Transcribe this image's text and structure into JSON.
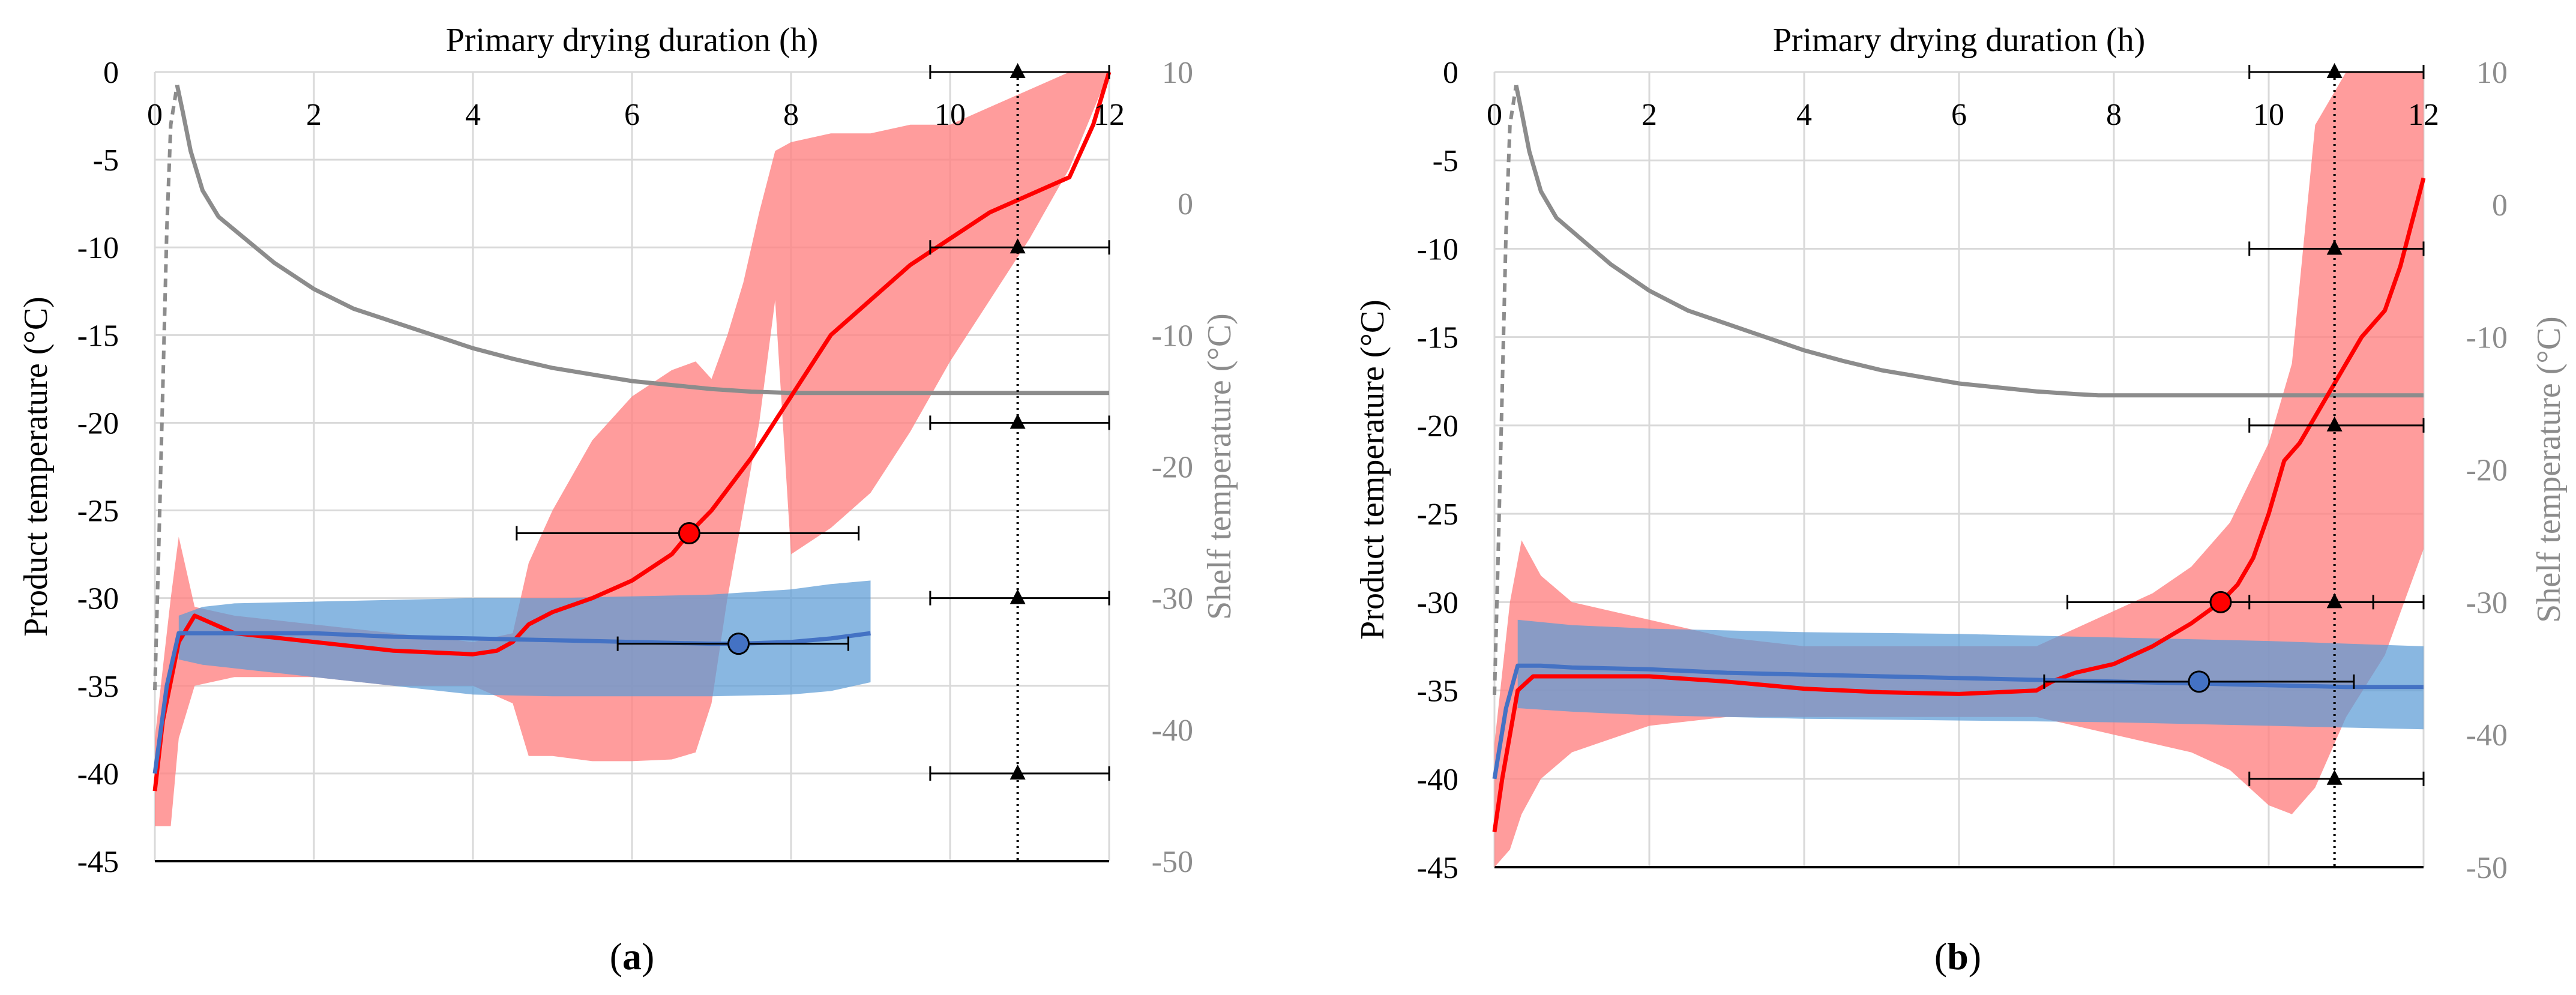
{
  "colors": {
    "red": "#ff0000",
    "red_band": "#ff8080",
    "blue": "#4472c4",
    "blue_band": "#5b9bd5",
    "shelf": "#8c8c8c",
    "grid": "#d9d9d9",
    "axis_text": "#000000",
    "secondary_text": "#8c8c8c"
  },
  "chart_data": [
    {
      "panel_label": "(a)",
      "panel_letter": "a",
      "type": "line",
      "title": "Primary drying duration (h)",
      "xlabel": "Primary drying duration (h)",
      "ylabel": "Product temperature (°C)",
      "y2label": "Shelf temperature (°C)",
      "xlim": [
        0,
        12
      ],
      "ylim": [
        -45,
        0
      ],
      "y2lim": [
        -50,
        10
      ],
      "xticks": [
        "0",
        "2",
        "4",
        "6",
        "8",
        "10",
        "12"
      ],
      "yticks": [
        "0",
        "-5",
        "-10",
        "-15",
        "-20",
        "-25",
        "-30",
        "-35",
        "-40",
        "-45"
      ],
      "y2ticks": [
        "10",
        "0",
        "-10",
        "-20",
        "-30",
        "-40",
        "-50"
      ],
      "series": [
        {
          "name": "Shelf temperature",
          "axis": "y2",
          "style": "solid-gray",
          "dashed_x": [
            0,
            0.05,
            0.1,
            0.15,
            0.2,
            0.28
          ],
          "dashed_y": [
            -37,
            -26,
            -14,
            -2,
            6,
            9
          ],
          "x": [
            0.28,
            0.35,
            0.45,
            0.6,
            0.8,
            1.0,
            1.5,
            2.0,
            2.5,
            3.0,
            3.5,
            4.0,
            4.5,
            5.0,
            5.5,
            6.0,
            6.5,
            7.0,
            7.5,
            8.0,
            9.0,
            10.0,
            11.0,
            12.0
          ],
          "y": [
            9,
            7,
            4,
            1,
            -1,
            -2,
            -4.5,
            -6.5,
            -8,
            -9,
            -10,
            -11,
            -11.8,
            -12.5,
            -13,
            -13.5,
            -13.8,
            -14.1,
            -14.3,
            -14.4,
            -14.4,
            -14.4,
            -14.4,
            -14.4
          ]
        },
        {
          "name": "Product temperature (red)",
          "axis": "y",
          "x": [
            0,
            0.1,
            0.3,
            0.5,
            1.0,
            2.0,
            3.0,
            4.0,
            4.3,
            4.5,
            4.7,
            5.0,
            5.5,
            6.0,
            6.5,
            6.72,
            7.0,
            7.5,
            8.0,
            8.5,
            9.0,
            9.5,
            10.0,
            10.5,
            11.0,
            11.5,
            11.8,
            12.0
          ],
          "y": [
            -41,
            -37,
            -32.5,
            -31,
            -32,
            -32.5,
            -33,
            -33.2,
            -33,
            -32.5,
            -31.5,
            -30.8,
            -30,
            -29,
            -27.5,
            -26.3,
            -25,
            -22,
            -18.5,
            -15,
            -13,
            -11,
            -9.5,
            -8,
            -7,
            -6,
            -3,
            0
          ]
        },
        {
          "name": "Red variability band",
          "axis": "y",
          "type": "band",
          "x": [
            0,
            0.2,
            0.3,
            0.5,
            1.0,
            2.0,
            3.0,
            4.0,
            4.5,
            4.7,
            5.0,
            5.5,
            6.0,
            6.5,
            6.8,
            7.0,
            7.2,
            7.4,
            7.6,
            7.8,
            8.0,
            8.5,
            9.0,
            9.5,
            10.0,
            10.5,
            11.0,
            11.5,
            12.0
          ],
          "upper": [
            -38,
            -30,
            -26.5,
            -30.5,
            -31,
            -31.5,
            -32,
            -32.5,
            -32,
            -28,
            -25,
            -21,
            -18.5,
            -17,
            -16.5,
            -17.5,
            -15,
            -12,
            -8,
            -4.5,
            -4,
            -3.5,
            -3.5,
            -3,
            -3,
            -2,
            -1,
            0,
            0
          ],
          "lower": [
            -43,
            -43,
            -38,
            -35,
            -34.5,
            -34.5,
            -35,
            -35,
            -36,
            -39,
            -39,
            -39.3,
            -39.3,
            -39.2,
            -38.8,
            -36,
            -30,
            -25,
            -20,
            -13,
            -27.5,
            -26,
            -24,
            -20.5,
            -16.5,
            -13,
            -9.5,
            -5.5,
            0
          ]
        },
        {
          "name": "Product temperature (blue)",
          "axis": "y",
          "x": [
            0,
            0.15,
            0.3,
            0.5,
            1.0,
            2.0,
            3.0,
            4.0,
            5.0,
            6.0,
            7.0,
            7.34,
            8.0,
            8.5,
            9.0
          ],
          "y": [
            -40,
            -35,
            -32,
            -32,
            -32,
            -32,
            -32.2,
            -32.3,
            -32.4,
            -32.5,
            -32.6,
            -32.6,
            -32.5,
            -32.3,
            -32
          ]
        },
        {
          "name": "Blue variability band",
          "axis": "y",
          "type": "band",
          "x": [
            0.3,
            0.6,
            1.0,
            2.0,
            3.0,
            4.0,
            5.0,
            6.0,
            7.0,
            8.0,
            8.5,
            9.0
          ],
          "upper": [
            -31,
            -30.5,
            -30.3,
            -30.2,
            -30.1,
            -30,
            -30,
            -29.9,
            -29.8,
            -29.5,
            -29.2,
            -29
          ],
          "lower": [
            -33.5,
            -33.8,
            -34,
            -34.5,
            -35,
            -35.5,
            -35.6,
            -35.6,
            -35.6,
            -35.5,
            -35.3,
            -34.8
          ]
        }
      ],
      "markers": [
        {
          "name": "red-endpoint",
          "x": 6.72,
          "y": -26.3,
          "xerr": [
            4.55,
            8.85
          ],
          "color": "red"
        },
        {
          "name": "blue-endpoint",
          "x": 7.34,
          "y": -32.6,
          "xerr": [
            5.82,
            8.72
          ],
          "color": "blue"
        }
      ],
      "reference_line_x": 10.85,
      "triangle_markers": [
        {
          "x": 10.85,
          "y": 0,
          "xerr": [
            9.75,
            12
          ]
        },
        {
          "x": 10.85,
          "y": -10,
          "xerr": [
            9.75,
            12
          ]
        },
        {
          "x": 10.85,
          "y": -20,
          "xerr": [
            9.75,
            12
          ]
        },
        {
          "x": 10.85,
          "y": -30,
          "xerr": [
            9.75,
            12
          ]
        },
        {
          "x": 10.85,
          "y": -40,
          "xerr": [
            9.75,
            12
          ]
        }
      ]
    },
    {
      "panel_label": "(b)",
      "panel_letter": "b",
      "type": "line",
      "title": "Primary drying duration (h)",
      "xlabel": "Primary drying duration (h)",
      "ylabel": "Product temperature (°C)",
      "y2label": "Shelf temperature (°C)",
      "xlim": [
        0,
        12
      ],
      "ylim": [
        -45,
        0
      ],
      "y2lim": [
        -50,
        10
      ],
      "xticks": [
        "0",
        "2",
        "4",
        "6",
        "8",
        "10",
        "12"
      ],
      "yticks": [
        "0",
        "-5",
        "-10",
        "-15",
        "-20",
        "-25",
        "-30",
        "-35",
        "-40",
        "-45"
      ],
      "y2ticks": [
        "10",
        "0",
        "-10",
        "-20",
        "-30",
        "-40",
        "-50"
      ],
      "series": [
        {
          "name": "Shelf temperature",
          "axis": "y2",
          "style": "solid-gray",
          "dashed_x": [
            0,
            0.05,
            0.1,
            0.15,
            0.2,
            0.28
          ],
          "dashed_y": [
            -37,
            -26,
            -14,
            -2,
            6,
            9
          ],
          "x": [
            0.28,
            0.35,
            0.45,
            0.6,
            0.8,
            1.0,
            1.5,
            2.0,
            2.5,
            3.0,
            3.5,
            4.0,
            4.5,
            5.0,
            5.5,
            6.0,
            6.5,
            7.0,
            7.5,
            7.8,
            8.5,
            9.0,
            10.0,
            11.0,
            12.0
          ],
          "y": [
            9,
            7,
            4,
            1,
            -1,
            -2,
            -4.5,
            -6.5,
            -8,
            -9,
            -10,
            -11,
            -11.8,
            -12.5,
            -13,
            -13.5,
            -13.8,
            -14.1,
            -14.3,
            -14.4,
            -14.4,
            -14.4,
            -14.4,
            -14.4,
            -14.4
          ]
        },
        {
          "name": "Product temperature (red)",
          "axis": "y",
          "x": [
            0,
            0.1,
            0.3,
            0.5,
            1.0,
            2.0,
            3.0,
            4.0,
            5.0,
            6.0,
            7.0,
            7.2,
            7.5,
            8.0,
            8.5,
            9.0,
            9.38,
            9.6,
            9.8,
            10.0,
            10.2,
            10.4,
            10.6,
            10.8,
            11.0,
            11.2,
            11.5,
            11.7,
            11.85,
            12.0
          ],
          "y": [
            -43,
            -40,
            -35,
            -34.2,
            -34.2,
            -34.2,
            -34.5,
            -34.9,
            -35.1,
            -35.2,
            -35,
            -34.5,
            -34,
            -33.5,
            -32.5,
            -31.2,
            -30,
            -29,
            -27.5,
            -25,
            -22,
            -21,
            -19.5,
            -18,
            -16.5,
            -15,
            -13.5,
            -11,
            -8.5,
            -6
          ]
        },
        {
          "name": "Red variability band",
          "axis": "y",
          "type": "band",
          "x": [
            0,
            0.2,
            0.35,
            0.6,
            1.0,
            2.0,
            3.0,
            4.0,
            5.0,
            6.0,
            7.0,
            7.5,
            8.0,
            8.5,
            9.0,
            9.5,
            10.0,
            10.3,
            10.6,
            11.0,
            11.5,
            12.0
          ],
          "upper": [
            -38,
            -30,
            -26.5,
            -28.5,
            -30,
            -31,
            -32,
            -32.5,
            -32.5,
            -32.5,
            -32.5,
            -31.5,
            -30.5,
            -29.5,
            -28,
            -25.5,
            -21,
            -16.5,
            -3,
            0,
            0,
            0
          ],
          "lower": [
            -45,
            -44,
            -42,
            -40,
            -38.5,
            -37,
            -36.5,
            -36.5,
            -36.5,
            -36.5,
            -36.5,
            -37,
            -37.5,
            -38,
            -38.5,
            -39.5,
            -41.5,
            -42,
            -40.5,
            -36.5,
            -33,
            -27
          ]
        },
        {
          "name": "Product temperature (blue)",
          "axis": "y",
          "x": [
            0,
            0.15,
            0.3,
            0.6,
            1.0,
            2.0,
            3.0,
            4.0,
            5.0,
            6.0,
            7.0,
            8.0,
            9.0,
            10.0,
            11.0,
            12.0
          ],
          "y": [
            -40,
            -36,
            -33.6,
            -33.6,
            -33.7,
            -33.8,
            -34,
            -34.1,
            -34.2,
            -34.3,
            -34.4,
            -34.5,
            -34.6,
            -34.7,
            -34.8,
            -34.8
          ]
        },
        {
          "name": "Blue variability band",
          "axis": "y",
          "type": "band",
          "x": [
            0.3,
            1.0,
            2.0,
            4.0,
            6.0,
            8.0,
            10.0,
            12.0
          ],
          "upper": [
            -31,
            -31.3,
            -31.5,
            -31.7,
            -31.8,
            -32,
            -32.2,
            -32.5
          ],
          "lower": [
            -36,
            -36.2,
            -36.4,
            -36.6,
            -36.7,
            -36.8,
            -37,
            -37.2
          ]
        }
      ],
      "markers": [
        {
          "name": "red-endpoint",
          "x": 9.38,
          "y": -30,
          "xerr": [
            7.4,
            11.35
          ],
          "color": "red"
        },
        {
          "name": "blue-endpoint",
          "x": 9.1,
          "y": -34.5,
          "xerr": [
            7.1,
            11.1
          ],
          "color": "blue"
        }
      ],
      "reference_line_x": 10.85,
      "triangle_markers": [
        {
          "x": 10.85,
          "y": 0,
          "xerr": [
            9.75,
            12
          ]
        },
        {
          "x": 10.85,
          "y": -10,
          "xerr": [
            9.75,
            12
          ]
        },
        {
          "x": 10.85,
          "y": -20,
          "xerr": [
            9.75,
            12
          ]
        },
        {
          "x": 10.85,
          "y": -30,
          "xerr": [
            9.75,
            12
          ]
        },
        {
          "x": 10.85,
          "y": -40,
          "xerr": [
            9.75,
            12
          ]
        }
      ]
    }
  ]
}
